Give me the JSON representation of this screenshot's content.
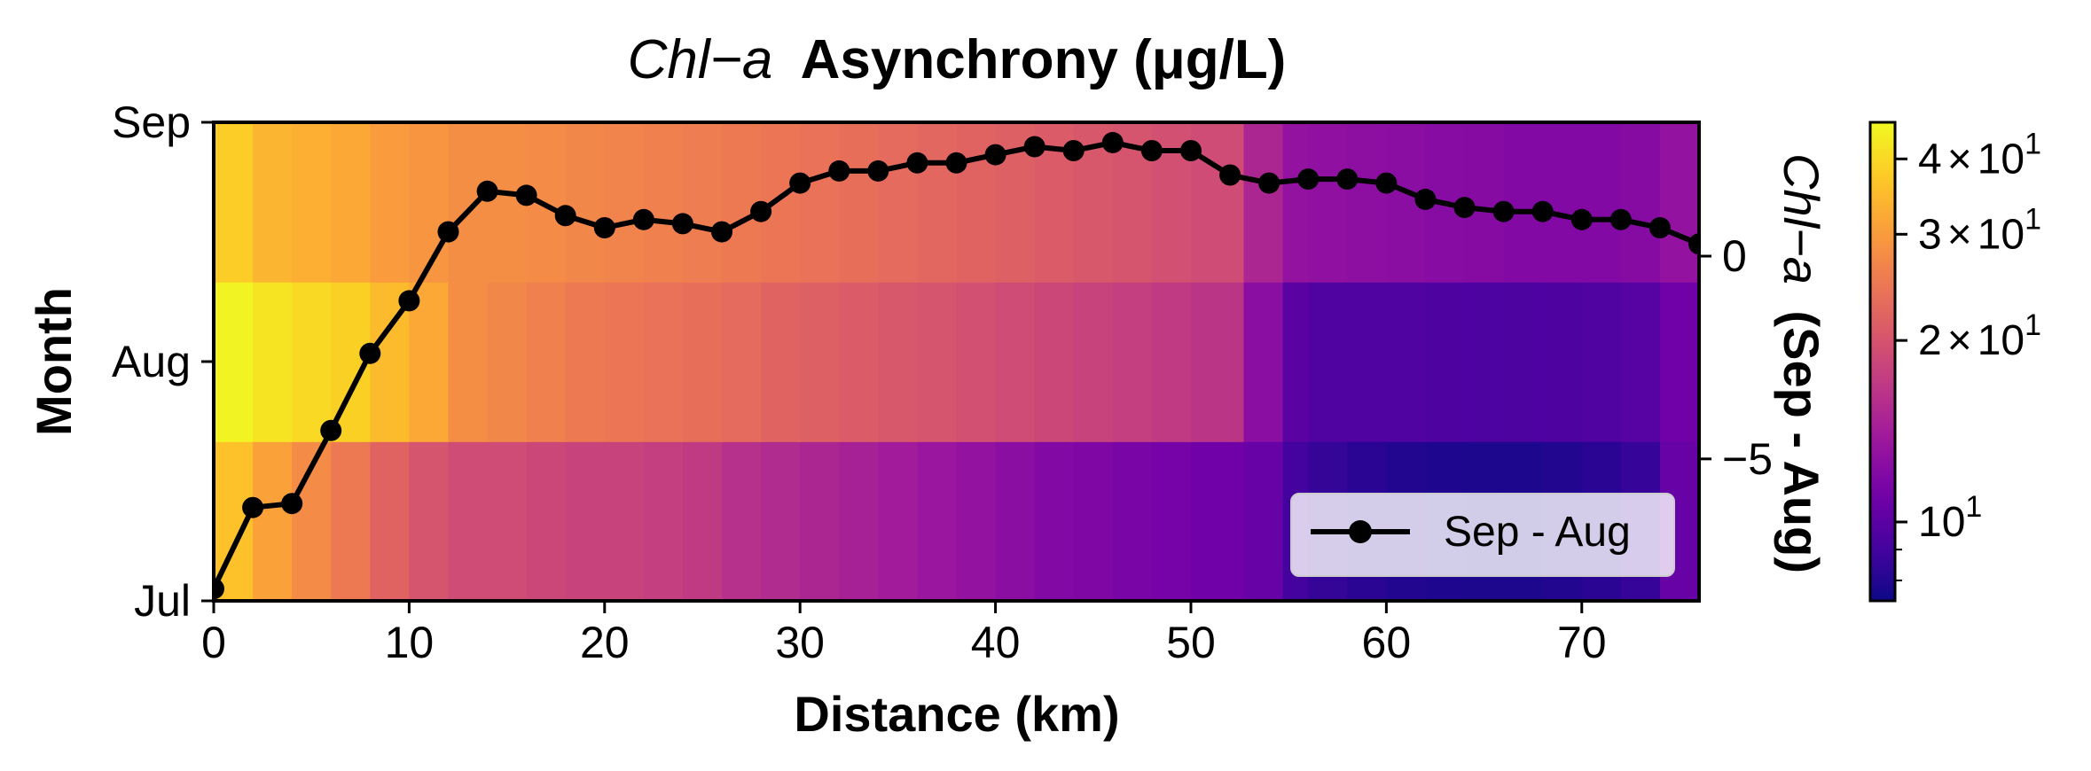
{
  "chart_data": {
    "type": "heatmap",
    "title": {
      "italic_part": "Chl−a",
      "bold_part": "Asynchrony (μg/L)"
    },
    "xlabel": "Distance (km)",
    "ylabel": "Month",
    "y2label": {
      "italic_part": "Chl−a",
      "bold_part": "(Sep - Aug)"
    },
    "xlim": [
      0,
      76
    ],
    "x_ticks": [
      0,
      10,
      20,
      30,
      40,
      50,
      60,
      70
    ],
    "x_tick_labels": [
      "0",
      "10",
      "20",
      "30",
      "40",
      "50",
      "60",
      "70"
    ],
    "months": [
      "Jul",
      "Aug",
      "Sep"
    ],
    "y_tick_labels": [
      "Jul",
      "Aug",
      "Sep"
    ],
    "heatmap": {
      "cell_edges_km": [
        0,
        2,
        4,
        6,
        8,
        10,
        12,
        14,
        16,
        18,
        20,
        22,
        24,
        26,
        28,
        30,
        32,
        34,
        36,
        38,
        40,
        42,
        44,
        46,
        48,
        50,
        52.7,
        54.7,
        56,
        58,
        60,
        62,
        64,
        66,
        68,
        70,
        72,
        74,
        76
      ],
      "rows": [
        {
          "month": "Jul",
          "values": [
            36,
            31,
            27.5,
            25,
            22,
            20,
            19,
            19,
            18.5,
            18,
            18,
            17.5,
            17,
            16,
            15.5,
            15,
            14.5,
            14,
            13.5,
            13,
            12.5,
            12,
            11.8,
            11.5,
            11.3,
            11,
            10.5,
            9,
            8.5,
            8.2,
            8,
            7.9,
            7.8,
            7.8,
            8,
            8.2,
            8.6,
            10.5
          ]
        },
        {
          "month": "Aug",
          "values": [
            45,
            42,
            40,
            38.5,
            35,
            32,
            28,
            27,
            26,
            25,
            24.5,
            24,
            23.5,
            23,
            22,
            21.5,
            21,
            20.5,
            20,
            19.5,
            19,
            18.5,
            18,
            17.5,
            17,
            16.5,
            12.5,
            10,
            9.5,
            9.5,
            9.5,
            9.4,
            9.3,
            9.3,
            9.4,
            9.5,
            9.8,
            11
          ]
        },
        {
          "month": "Sep",
          "values": [
            38,
            34,
            33,
            32,
            30,
            29,
            28,
            28,
            27.5,
            27,
            26.5,
            26,
            25.5,
            25,
            24.5,
            24,
            23.5,
            23,
            22.5,
            22,
            21.5,
            21,
            20.5,
            20,
            19.5,
            19,
            15,
            13,
            12.8,
            12.6,
            12.5,
            12.3,
            12.2,
            12,
            12,
            12,
            12.2,
            13
          ]
        }
      ],
      "colormap": "plasma",
      "color_scale": "log",
      "clim": [
        7.4,
        46
      ],
      "colorbar_ticks": [
        10,
        20,
        30,
        40
      ],
      "colorbar_tick_labels": [
        {
          "mantissa": "",
          "base": "10",
          "exp": "1"
        },
        {
          "mantissa": "2",
          "base": "10",
          "exp": "1"
        },
        {
          "mantissa": "3",
          "base": "10",
          "exp": "1"
        },
        {
          "mantissa": "4",
          "base": "10",
          "exp": "1"
        }
      ],
      "times_symbol": "×",
      "colors": [
        "#0d0887",
        "#46039f",
        "#7201a8",
        "#9c179e",
        "#bd3786",
        "#d8576b",
        "#ed7953",
        "#fb9f3a",
        "#fdca26",
        "#f0f921"
      ]
    },
    "series": [
      {
        "name": "Sep - Aug",
        "color": "#000000",
        "x": [
          0,
          2,
          4,
          6,
          8,
          10,
          12,
          14,
          16,
          18,
          20,
          22,
          24,
          26,
          28,
          30,
          32,
          34,
          36,
          38,
          40,
          42,
          44,
          46,
          48,
          50,
          52,
          54,
          56,
          58,
          60,
          62,
          64,
          66,
          68,
          70,
          72,
          74,
          76
        ],
        "y": [
          -8.2,
          -6.2,
          -6.1,
          -4.3,
          -2.4,
          -1.1,
          0.6,
          1.6,
          1.5,
          1.0,
          0.7,
          0.9,
          0.8,
          0.6,
          1.1,
          1.8,
          2.1,
          2.1,
          2.3,
          2.3,
          2.5,
          2.7,
          2.6,
          2.8,
          2.6,
          2.6,
          2.0,
          1.8,
          1.9,
          1.9,
          1.8,
          1.4,
          1.2,
          1.1,
          1.1,
          0.9,
          0.9,
          0.7,
          0.3
        ]
      }
    ],
    "y2lim": [
      -8.5,
      3.3
    ],
    "y2_ticks": [
      -5,
      0
    ],
    "y2_tick_labels": [
      "−5",
      "0"
    ],
    "legend": {
      "location": "lower right",
      "label": "Sep - Aug"
    }
  }
}
